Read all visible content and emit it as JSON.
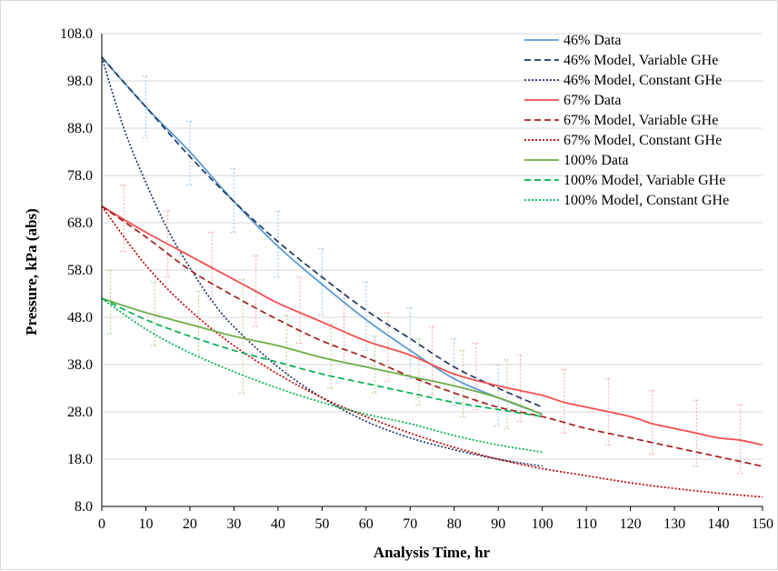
{
  "chart_data": {
    "type": "line",
    "xlabel": "Analysis Time, hr",
    "ylabel": "Pressure, kPa (abs)",
    "xlim": [
      0,
      150
    ],
    "ylim": [
      8.0,
      108.0
    ],
    "x_ticks": [
      "0",
      "10",
      "20",
      "30",
      "40",
      "50",
      "60",
      "70",
      "80",
      "90",
      "100",
      "110",
      "120",
      "130",
      "140",
      "150"
    ],
    "y_ticks": [
      "8.0",
      "18.0",
      "28.0",
      "38.0",
      "48.0",
      "58.0",
      "68.0",
      "78.0",
      "88.0",
      "98.0",
      "108.0"
    ],
    "grid": "horizontal",
    "legend_position": "top-right",
    "series": [
      {
        "name": "46% Data",
        "color": "#5b9bd5",
        "dash": "solid",
        "x": [
          0,
          10,
          20,
          30,
          40,
          50,
          60,
          70,
          80,
          90,
          100
        ],
        "y": [
          103.0,
          92.5,
          83.0,
          72.5,
          63.0,
          55.0,
          47.5,
          41.0,
          35.0,
          31.0,
          27.5
        ]
      },
      {
        "name": "46% Model, Variable GHe",
        "color": "#1f3864",
        "dash": "dashed",
        "x": [
          0,
          10,
          20,
          30,
          40,
          50,
          60,
          70,
          80,
          90,
          100
        ],
        "y": [
          103.0,
          92.5,
          82.0,
          72.5,
          64.0,
          56.5,
          49.5,
          43.5,
          37.5,
          33.0,
          29.0
        ]
      },
      {
        "name": "46% Model, Constant GHe",
        "color": "#1f3864",
        "dash": "dotted",
        "x": [
          0,
          5,
          10,
          15,
          20,
          25,
          30,
          40,
          50,
          60,
          70,
          80,
          90,
          100
        ],
        "y": [
          103.0,
          88.0,
          76.5,
          66.5,
          58.5,
          51.5,
          46.0,
          37.5,
          31.0,
          26.0,
          22.5,
          20.0,
          18.0,
          16.5
        ]
      },
      {
        "name": "67% Data",
        "color": "#f0504f",
        "dash": "solid",
        "x": [
          0,
          10,
          20,
          30,
          35,
          40,
          50,
          60,
          70,
          80,
          90,
          95,
          100,
          105,
          110,
          120,
          125,
          130,
          135,
          140,
          145,
          150
        ],
        "y": [
          71.5,
          66.0,
          61.0,
          56.0,
          53.5,
          51.0,
          47.0,
          43.0,
          40.0,
          36.0,
          33.5,
          32.5,
          31.5,
          30.0,
          29.0,
          27.0,
          25.5,
          24.5,
          23.5,
          22.5,
          22.0,
          21.0
        ]
      },
      {
        "name": "67% Model, Variable GHe",
        "color": "#a51c1c",
        "dash": "dashed",
        "x": [
          0,
          10,
          20,
          30,
          40,
          50,
          60,
          70,
          80,
          90,
          100,
          110,
          120,
          130,
          140,
          150
        ],
        "y": [
          71.5,
          65.0,
          58.0,
          52.5,
          47.5,
          43.0,
          39.5,
          35.5,
          32.0,
          29.0,
          27.0,
          24.5,
          22.5,
          20.5,
          18.5,
          16.5
        ]
      },
      {
        "name": "67% Model, Constant GHe",
        "color": "#c00000",
        "dash": "dotted",
        "x": [
          0,
          10,
          20,
          30,
          40,
          50,
          60,
          70,
          80,
          90,
          100,
          110,
          120,
          130,
          140,
          150
        ],
        "y": [
          71.5,
          59.0,
          49.5,
          42.0,
          36.0,
          31.0,
          27.0,
          23.5,
          20.5,
          18.0,
          16.0,
          14.5,
          13.0,
          11.8,
          10.8,
          10.0
        ]
      },
      {
        "name": "100% Data",
        "color": "#70ad47",
        "dash": "solid",
        "x": [
          0,
          10,
          20,
          30,
          40,
          50,
          60,
          70,
          80,
          90,
          100
        ],
        "y": [
          52.0,
          49.0,
          46.5,
          44.0,
          42.0,
          39.5,
          37.5,
          35.5,
          33.5,
          31.0,
          27.5
        ]
      },
      {
        "name": "100% Model, Variable GHe",
        "color": "#00b050",
        "dash": "dashed",
        "x": [
          0,
          10,
          20,
          30,
          40,
          50,
          60,
          70,
          80,
          90,
          100
        ],
        "y": [
          52.0,
          47.5,
          44.0,
          41.0,
          38.5,
          36.0,
          34.0,
          32.0,
          30.0,
          28.5,
          27.0
        ]
      },
      {
        "name": "100% Model, Constant GHe",
        "color": "#00b050",
        "dash": "dotted",
        "x": [
          0,
          10,
          20,
          30,
          40,
          50,
          60,
          70,
          80,
          90,
          100
        ],
        "y": [
          52.0,
          45.5,
          40.5,
          36.5,
          33.0,
          30.0,
          27.5,
          25.5,
          23.0,
          21.0,
          19.5
        ]
      }
    ],
    "error_bars": [
      {
        "series": "46% Data",
        "color": "#9dc3e6",
        "x": [
          10,
          20,
          30,
          40,
          50,
          60,
          70,
          80,
          90
        ],
        "low": [
          86.0,
          76.0,
          66.0,
          56.5,
          48.5,
          41.0,
          35.0,
          29.5,
          25.0
        ],
        "high": [
          99.0,
          89.5,
          79.5,
          70.5,
          62.5,
          55.5,
          50.0,
          43.5,
          38.0
        ]
      },
      {
        "series": "67% Data",
        "color": "#f4a6a6",
        "x": [
          5,
          15,
          25,
          35,
          45,
          55,
          65,
          75,
          85,
          95,
          105,
          115,
          125,
          135,
          145
        ],
        "low": [
          62.0,
          56.5,
          51.5,
          46.0,
          42.5,
          38.5,
          34.5,
          31.5,
          28.5,
          26.0,
          23.5,
          21.0,
          19.0,
          16.5,
          15.0
        ],
        "high": [
          76.0,
          70.5,
          66.0,
          61.0,
          56.5,
          53.0,
          49.0,
          46.0,
          42.5,
          40.0,
          37.0,
          35.0,
          32.5,
          30.5,
          29.5
        ]
      },
      {
        "series": "100% Data",
        "color": "#a9d18e",
        "x": [
          2,
          12,
          22,
          32,
          42,
          52,
          62,
          72,
          82,
          92
        ],
        "low": [
          44.5,
          42.0,
          40.0,
          32.0,
          35.5,
          33.0,
          32.0,
          29.5,
          27.0,
          24.5
        ],
        "high": [
          58.0,
          55.5,
          53.5,
          56.0,
          48.5,
          46.5,
          44.0,
          43.5,
          41.0,
          39.0
        ]
      }
    ]
  }
}
